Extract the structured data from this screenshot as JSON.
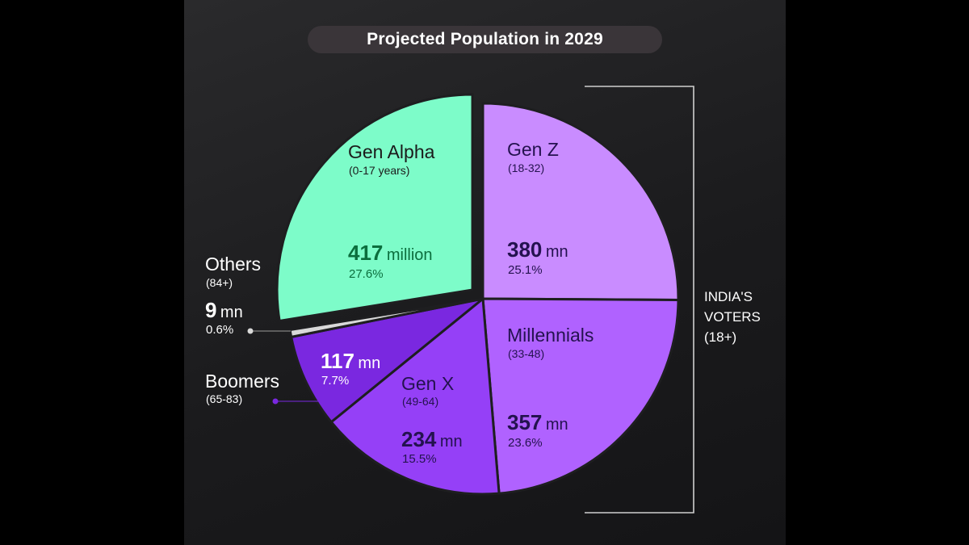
{
  "title": "Projected Population in 2029",
  "bracket_label": [
    "INDIA'S",
    "VOTERS",
    "(18+)"
  ],
  "colors": {
    "gen_alpha": "#7dfcc9",
    "gen_z": "#c98cff",
    "millennials": "#b062ff",
    "gen_x": "#9540f7",
    "boomers": "#7a28e0",
    "others": "#d9d9d9"
  },
  "chart_data": {
    "type": "pie",
    "title": "Projected Population in 2029",
    "unit": "million",
    "slices": [
      {
        "name": "Gen Z",
        "range": "(18-32)",
        "value": 380,
        "value_label": "380",
        "unit_label": "mn",
        "percent": 25.1,
        "percent_label": "25.1%"
      },
      {
        "name": "Millennials",
        "range": "(33-48)",
        "value": 357,
        "value_label": "357",
        "unit_label": "mn",
        "percent": 23.6,
        "percent_label": "23.6%"
      },
      {
        "name": "Gen X",
        "range": "(49-64)",
        "value": 234,
        "value_label": "234",
        "unit_label": "mn",
        "percent": 15.5,
        "percent_label": "15.5%"
      },
      {
        "name": "Boomers",
        "range": "(65-83)",
        "value": 117,
        "value_label": "117",
        "unit_label": "mn",
        "percent": 7.7,
        "percent_label": "7.7%"
      },
      {
        "name": "Others",
        "range": "(84+)",
        "value": 9,
        "value_label": "9",
        "unit_label": "mn",
        "percent": 0.6,
        "percent_label": "0.6%"
      },
      {
        "name": "Gen Alpha",
        "range": "(0-17 years)",
        "value": 417,
        "value_label": "417",
        "unit_label": "million",
        "percent": 27.6,
        "percent_label": "27.6%"
      }
    ]
  }
}
